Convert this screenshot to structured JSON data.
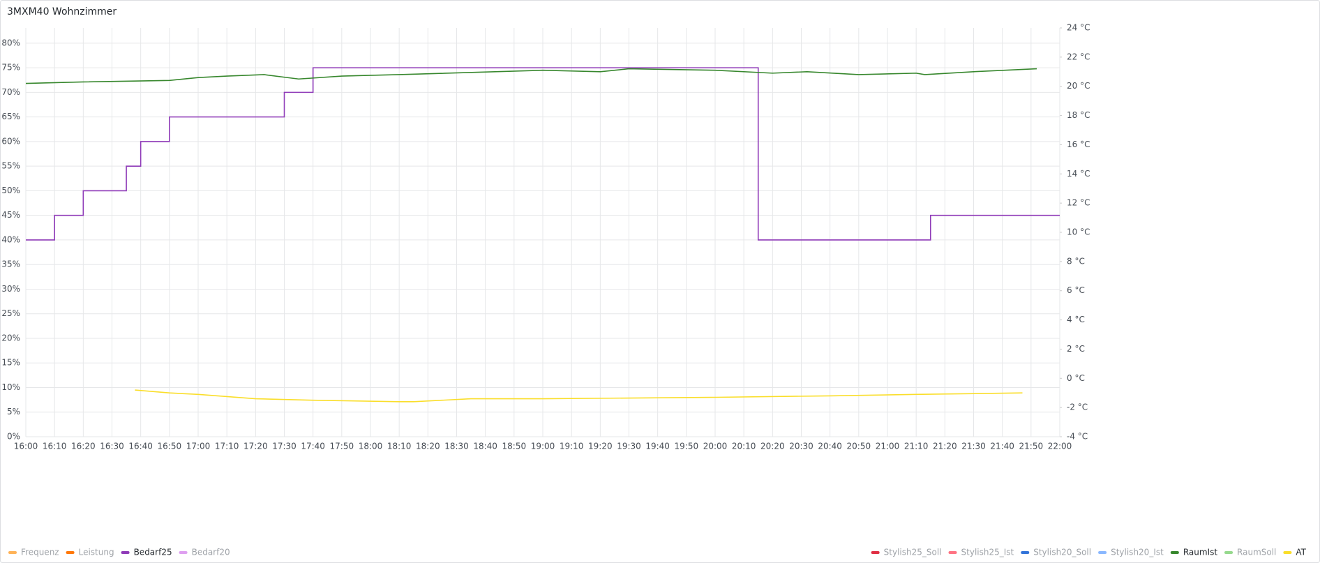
{
  "chart_data": {
    "type": "line",
    "title": "3MXM40 Wohnzimmer",
    "xlim": [
      "16:00",
      "22:00"
    ],
    "xticks": [
      "16:00",
      "16:10",
      "16:20",
      "16:30",
      "16:40",
      "16:50",
      "17:00",
      "17:10",
      "17:20",
      "17:30",
      "17:40",
      "17:50",
      "18:00",
      "18:10",
      "18:20",
      "18:30",
      "18:40",
      "18:50",
      "19:00",
      "19:10",
      "19:20",
      "19:30",
      "19:40",
      "19:50",
      "20:00",
      "20:10",
      "20:20",
      "20:30",
      "20:40",
      "20:50",
      "21:00",
      "21:10",
      "21:20",
      "21:30",
      "21:40",
      "21:50",
      "22:00"
    ],
    "ylim": [
      0,
      83.1
    ],
    "yticks": [
      {
        "value": 0,
        "label": "0%"
      },
      {
        "value": 5,
        "label": "5%"
      },
      {
        "value": 10,
        "label": "10%"
      },
      {
        "value": 15,
        "label": "15%"
      },
      {
        "value": 20,
        "label": "20%"
      },
      {
        "value": 25,
        "label": "25%"
      },
      {
        "value": 30,
        "label": "30%"
      },
      {
        "value": 35,
        "label": "35%"
      },
      {
        "value": 40,
        "label": "40%"
      },
      {
        "value": 45,
        "label": "45%"
      },
      {
        "value": 50,
        "label": "50%"
      },
      {
        "value": 55,
        "label": "55%"
      },
      {
        "value": 60,
        "label": "60%"
      },
      {
        "value": 65,
        "label": "65%"
      },
      {
        "value": 70,
        "label": "70%"
      },
      {
        "value": 75,
        "label": "75%"
      },
      {
        "value": 80,
        "label": "80%"
      }
    ],
    "y2lim": [
      -4,
      24
    ],
    "y2ticks": [
      {
        "value": -4,
        "label": "-4 °C"
      },
      {
        "value": -2,
        "label": "-2 °C"
      },
      {
        "value": 0,
        "label": "0 °C"
      },
      {
        "value": 2,
        "label": "2 °C"
      },
      {
        "value": 4,
        "label": "4 °C"
      },
      {
        "value": 6,
        "label": "6 °C"
      },
      {
        "value": 8,
        "label": "8 °C"
      },
      {
        "value": 10,
        "label": "10 °C"
      },
      {
        "value": 12,
        "label": "12 °C"
      },
      {
        "value": 14,
        "label": "14 °C"
      },
      {
        "value": 16,
        "label": "16 °C"
      },
      {
        "value": 18,
        "label": "18 °C"
      },
      {
        "value": 20,
        "label": "20 °C"
      },
      {
        "value": 22,
        "label": "22 °C"
      },
      {
        "value": 24,
        "label": "24 °C"
      }
    ],
    "grid": true,
    "series": [
      {
        "name": "Frequenz",
        "color": "#ffb357",
        "hidden": true,
        "legend": "left",
        "x": [],
        "values": []
      },
      {
        "name": "Leistung",
        "color": "#ff780a",
        "hidden": true,
        "legend": "left",
        "x": [],
        "values": []
      },
      {
        "name": "Bedarf25",
        "color": "#8f3bb8",
        "legend": "left",
        "step": true,
        "x": [
          "16:00",
          "16:10",
          "16:20",
          "16:35",
          "16:40",
          "16:50",
          "17:30",
          "17:40",
          "20:15",
          "21:15",
          "22:00"
        ],
        "values": [
          40,
          45,
          50,
          55,
          60,
          65,
          70,
          75,
          40,
          45,
          45
        ]
      },
      {
        "name": "Bedarf20",
        "color": "#de9ff0",
        "hidden": true,
        "legend": "left",
        "x": [],
        "values": []
      },
      {
        "name": "Stylish25_Soll",
        "color": "#e02f44",
        "hidden": true,
        "legend": "right",
        "axis": "y2",
        "x": [],
        "values": []
      },
      {
        "name": "Stylish25_Ist",
        "color": "#ff7383",
        "hidden": true,
        "legend": "right",
        "axis": "y2",
        "x": [],
        "values": []
      },
      {
        "name": "Stylish20_Soll",
        "color": "#3274d9",
        "hidden": true,
        "legend": "right",
        "axis": "y2",
        "x": [],
        "values": []
      },
      {
        "name": "Stylish20_Ist",
        "color": "#8ab8ff",
        "hidden": true,
        "legend": "right",
        "axis": "y2",
        "x": [],
        "values": []
      },
      {
        "name": "RaumIst",
        "color": "#37872d",
        "legend": "right",
        "axis": "y2",
        "x": [
          "16:00",
          "16:20",
          "16:50",
          "17:00",
          "17:10",
          "17:23",
          "17:35",
          "17:50",
          "18:10",
          "19:00",
          "19:20",
          "19:30",
          "20:00",
          "20:20",
          "20:32",
          "20:50",
          "21:10",
          "21:13",
          "21:30",
          "21:52"
        ],
        "values": [
          20.2,
          20.3,
          20.4,
          20.6,
          20.7,
          20.8,
          20.5,
          20.7,
          20.8,
          21.1,
          21.0,
          21.2,
          21.1,
          20.9,
          21.0,
          20.8,
          20.9,
          20.8,
          21.0,
          21.2
        ]
      },
      {
        "name": "RaumSoll",
        "color": "#96d98d",
        "hidden": true,
        "legend": "right",
        "axis": "y2",
        "x": [],
        "values": []
      },
      {
        "name": "AT",
        "color": "#fade2a",
        "legend": "right",
        "axis": "y2",
        "x": [
          "16:38",
          "16:50",
          "17:00",
          "17:20",
          "17:40",
          "18:10",
          "18:15",
          "18:35",
          "19:00",
          "20:00",
          "20:40",
          "21:10",
          "21:47"
        ],
        "values": [
          -0.8,
          -1.0,
          -1.1,
          -1.4,
          -1.5,
          -1.6,
          -1.6,
          -1.4,
          -1.4,
          -1.3,
          -1.2,
          -1.1,
          -1.0
        ]
      }
    ]
  }
}
